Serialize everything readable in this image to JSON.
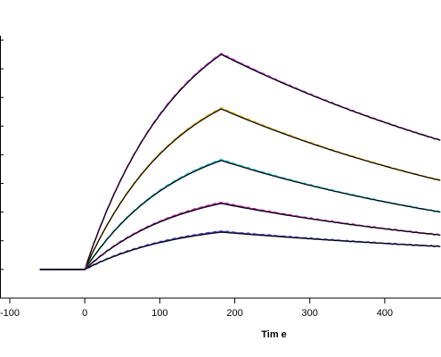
{
  "chart_data": {
    "type": "line",
    "title": "",
    "xlabel": "Tim e",
    "ylabel": "",
    "xlim": [
      -100,
      475
    ],
    "ylim": [
      0,
      9
    ],
    "x_ticks": [
      -100,
      0,
      100,
      200,
      300,
      400
    ],
    "x_tick_labels": [
      "-100",
      "0",
      "100",
      "200",
      "300",
      "400"
    ],
    "y_ticks": [
      0,
      1,
      2,
      3,
      4,
      5,
      6,
      7,
      8,
      9
    ],
    "grid": false,
    "legend": "none",
    "baseline": {
      "x": [
        -60,
        0
      ],
      "y": 1.0
    },
    "association_end_x": 182,
    "end_x": 475,
    "fit_color": "#000000",
    "series": [
      {
        "color": "#b03cc8",
        "values": [
          [
            0,
            1.0
          ],
          [
            182,
            8.5
          ],
          [
            475,
            5.5
          ]
        ]
      },
      {
        "color": "#e0b020",
        "values": [
          [
            0,
            1.0
          ],
          [
            182,
            6.6
          ],
          [
            475,
            4.1
          ]
        ]
      },
      {
        "color": "#20b8c8",
        "values": [
          [
            0,
            1.0
          ],
          [
            182,
            4.8
          ],
          [
            475,
            3.0
          ]
        ]
      },
      {
        "color": "#a020a0",
        "values": [
          [
            0,
            1.0
          ],
          [
            182,
            3.3
          ],
          [
            475,
            2.2
          ]
        ]
      },
      {
        "color": "#4040c0",
        "values": [
          [
            0,
            1.0
          ],
          [
            182,
            2.3
          ],
          [
            475,
            1.8
          ]
        ]
      }
    ]
  }
}
